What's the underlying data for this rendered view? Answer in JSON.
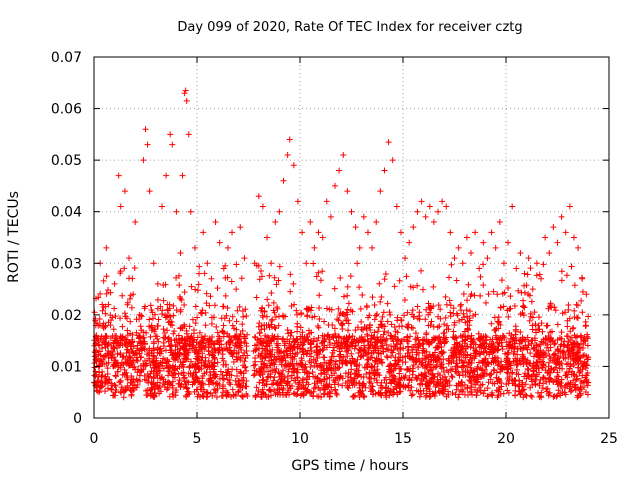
{
  "chart_data": {
    "type": "scatter",
    "title": "Day 099 of 2020, Rate Of TEC Index for receiver cztg",
    "xlabel": "GPS time / hours",
    "ylabel": "ROTI / TECUs",
    "xlim": [
      0,
      25
    ],
    "ylim": [
      0,
      0.07
    ],
    "xticks": [
      0,
      5,
      10,
      15,
      20,
      25
    ],
    "xtick_labels": [
      "0",
      "5",
      "10",
      "15",
      "20",
      "25"
    ],
    "yticks": [
      0,
      0.01,
      0.02,
      0.03,
      0.04,
      0.05,
      0.06,
      0.07
    ],
    "ytick_labels": [
      "0",
      "0.01",
      "0.02",
      "0.03",
      "0.04",
      "0.05",
      "0.06",
      "0.07"
    ],
    "grid": true,
    "marker": "+",
    "color": "#ff0000",
    "series": [
      {
        "name": "ROTI",
        "description": "dense band mostly 0.005-0.02 TECU across 0-24 h, gap near 7.5 h",
        "points": [
          [
            0.1,
            0.012
          ],
          [
            0.3,
            0.03
          ],
          [
            0.4,
            0.022
          ],
          [
            0.6,
            0.033
          ],
          [
            0.8,
            0.018
          ],
          [
            1.0,
            0.026
          ],
          [
            1.2,
            0.047
          ],
          [
            1.3,
            0.041
          ],
          [
            1.5,
            0.044
          ],
          [
            1.7,
            0.031
          ],
          [
            1.9,
            0.024
          ],
          [
            2.0,
            0.038
          ],
          [
            2.2,
            0.02
          ],
          [
            2.4,
            0.05
          ],
          [
            2.5,
            0.056
          ],
          [
            2.6,
            0.053
          ],
          [
            2.7,
            0.044
          ],
          [
            2.9,
            0.03
          ],
          [
            3.1,
            0.026
          ],
          [
            3.3,
            0.041
          ],
          [
            3.5,
            0.047
          ],
          [
            3.7,
            0.055
          ],
          [
            3.8,
            0.053
          ],
          [
            4.0,
            0.04
          ],
          [
            4.2,
            0.032
          ],
          [
            4.3,
            0.047
          ],
          [
            4.4,
            0.063
          ],
          [
            4.45,
            0.0635
          ],
          [
            4.5,
            0.0615
          ],
          [
            4.6,
            0.055
          ],
          [
            4.7,
            0.04
          ],
          [
            4.9,
            0.033
          ],
          [
            5.1,
            0.028
          ],
          [
            5.3,
            0.036
          ],
          [
            5.5,
            0.03
          ],
          [
            5.7,
            0.027
          ],
          [
            5.9,
            0.038
          ],
          [
            6.1,
            0.034
          ],
          [
            6.3,
            0.029
          ],
          [
            6.5,
            0.033
          ],
          [
            6.7,
            0.036
          ],
          [
            6.9,
            0.025
          ],
          [
            7.1,
            0.037
          ],
          [
            7.3,
            0.031
          ],
          [
            7.8,
            0.03
          ],
          [
            8.0,
            0.043
          ],
          [
            8.2,
            0.041
          ],
          [
            8.4,
            0.035
          ],
          [
            8.6,
            0.03
          ],
          [
            8.8,
            0.038
          ],
          [
            9.0,
            0.04
          ],
          [
            9.2,
            0.046
          ],
          [
            9.4,
            0.051
          ],
          [
            9.5,
            0.054
          ],
          [
            9.7,
            0.049
          ],
          [
            9.9,
            0.042
          ],
          [
            10.1,
            0.036
          ],
          [
            10.3,
            0.03
          ],
          [
            10.5,
            0.038
          ],
          [
            10.7,
            0.033
          ],
          [
            10.9,
            0.036
          ],
          [
            11.1,
            0.035
          ],
          [
            11.3,
            0.042
          ],
          [
            11.5,
            0.039
          ],
          [
            11.7,
            0.045
          ],
          [
            11.9,
            0.048
          ],
          [
            12.1,
            0.051
          ],
          [
            12.3,
            0.044
          ],
          [
            12.5,
            0.04
          ],
          [
            12.7,
            0.037
          ],
          [
            12.9,
            0.033
          ],
          [
            13.1,
            0.039
          ],
          [
            13.3,
            0.036
          ],
          [
            13.5,
            0.033
          ],
          [
            13.7,
            0.038
          ],
          [
            13.9,
            0.044
          ],
          [
            14.1,
            0.048
          ],
          [
            14.3,
            0.0535
          ],
          [
            14.5,
            0.05
          ],
          [
            14.7,
            0.041
          ],
          [
            14.9,
            0.036
          ],
          [
            15.1,
            0.031
          ],
          [
            15.3,
            0.034
          ],
          [
            15.5,
            0.037
          ],
          [
            15.7,
            0.04
          ],
          [
            15.9,
            0.042
          ],
          [
            16.1,
            0.039
          ],
          [
            16.3,
            0.041
          ],
          [
            16.5,
            0.038
          ],
          [
            16.7,
            0.04
          ],
          [
            16.9,
            0.042
          ],
          [
            17.1,
            0.041
          ],
          [
            17.3,
            0.036
          ],
          [
            17.5,
            0.031
          ],
          [
            17.7,
            0.033
          ],
          [
            17.9,
            0.03
          ],
          [
            18.1,
            0.035
          ],
          [
            18.3,
            0.032
          ],
          [
            18.5,
            0.036
          ],
          [
            18.7,
            0.029
          ],
          [
            18.9,
            0.034
          ],
          [
            19.1,
            0.031
          ],
          [
            19.3,
            0.036
          ],
          [
            19.5,
            0.033
          ],
          [
            19.7,
            0.038
          ],
          [
            19.9,
            0.03
          ],
          [
            20.1,
            0.034
          ],
          [
            20.3,
            0.041
          ],
          [
            20.5,
            0.029
          ],
          [
            20.7,
            0.032
          ],
          [
            20.9,
            0.028
          ],
          [
            21.1,
            0.031
          ],
          [
            21.3,
            0.025
          ],
          [
            21.5,
            0.03
          ],
          [
            21.7,
            0.027
          ],
          [
            21.9,
            0.035
          ],
          [
            22.1,
            0.032
          ],
          [
            22.3,
            0.037
          ],
          [
            22.5,
            0.034
          ],
          [
            22.7,
            0.039
          ],
          [
            22.9,
            0.036
          ],
          [
            23.1,
            0.041
          ],
          [
            23.3,
            0.035
          ],
          [
            23.5,
            0.033
          ],
          [
            23.7,
            0.027
          ],
          [
            23.9,
            0.024
          ]
        ]
      }
    ]
  }
}
